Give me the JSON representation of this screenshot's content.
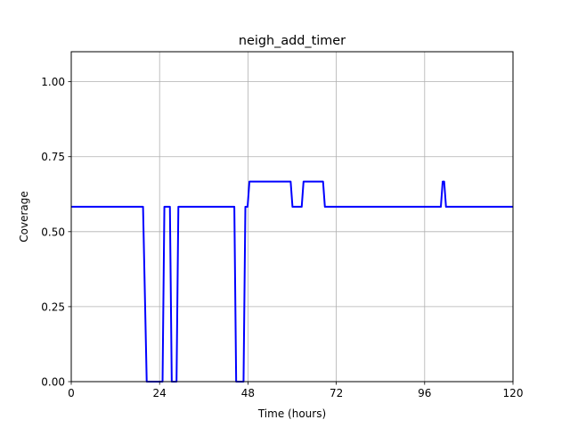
{
  "chart_data": {
    "type": "line",
    "title": "neigh_add_timer",
    "xlabel": "Time (hours)",
    "ylabel": "Coverage",
    "xlim": [
      0,
      120
    ],
    "ylim": [
      0,
      1.1
    ],
    "xticks": [
      0,
      24,
      48,
      72,
      96,
      120
    ],
    "yticks": [
      0.0,
      0.25,
      0.5,
      0.75,
      1.0
    ],
    "xtick_labels": [
      "0",
      "24",
      "48",
      "72",
      "96",
      "120"
    ],
    "ytick_labels": [
      "0.00",
      "0.25",
      "0.50",
      "0.75",
      "1.00"
    ],
    "grid": true,
    "line_color": "#0000ff",
    "series": [
      {
        "x": [
          0,
          19.5,
          20.5,
          24.8,
          25.3,
          26.8,
          27.3,
          28.6,
          29.1,
          44.3,
          44.8,
          46.8,
          47.3,
          47.9,
          48.4,
          59.6,
          60.1,
          62.6,
          63.1,
          68.4,
          68.9,
          100.4,
          100.9,
          101.3,
          101.8,
          120
        ],
        "y": [
          0.583,
          0.583,
          0.0,
          0.0,
          0.583,
          0.583,
          0.0,
          0.0,
          0.583,
          0.583,
          0.0,
          0.0,
          0.583,
          0.583,
          0.667,
          0.667,
          0.583,
          0.583,
          0.667,
          0.667,
          0.583,
          0.583,
          0.667,
          0.667,
          0.583,
          0.583
        ]
      }
    ]
  }
}
